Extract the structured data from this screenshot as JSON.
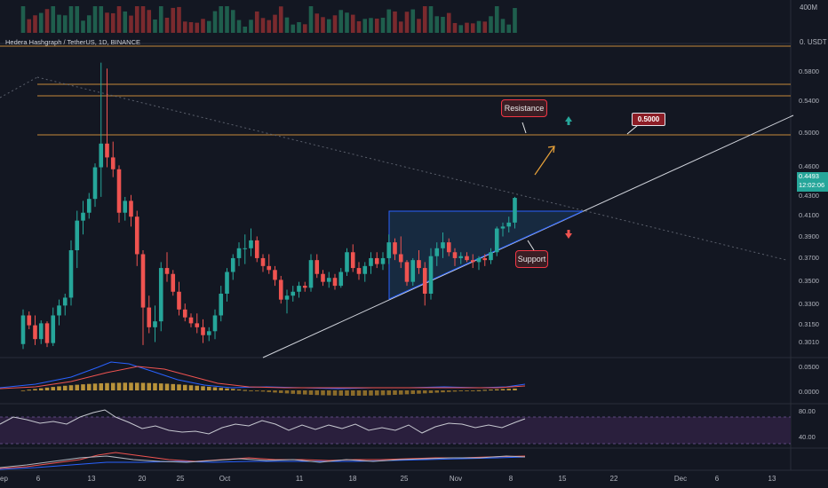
{
  "header": {
    "symbol_line": "Hedera Hashgraph / TetherUS, 1D, BINANCE"
  },
  "volume_axis_label": "400M",
  "top_axis_label": "0. USDT",
  "price_axis": [
    "0.5800",
    "0.5400",
    "0.5000",
    "0.4600",
    "0.4300",
    "0.4100",
    "0.3900",
    "0.3700",
    "0.3500",
    "0.3300",
    "0.3150",
    "0.3010"
  ],
  "current_price": {
    "price": "0.4493",
    "countdown": "12:02:06"
  },
  "macd_axis": [
    "0.0500",
    "0.0000"
  ],
  "rsi_axis": [
    "80.00",
    "40.00"
  ],
  "annotations": {
    "resistance": "Resistance",
    "support": "Support",
    "target": "0.5000"
  },
  "x_axis": [
    "ep",
    "6",
    "13",
    "20",
    "25",
    "Oct",
    "11",
    "18",
    "25",
    "Nov",
    "8",
    "15",
    "22",
    "Dec",
    "6",
    "13"
  ],
  "colors": {
    "up": "#26a69a",
    "down": "#ef5350",
    "background": "#131722",
    "accent": "#f7a600"
  },
  "chart_data": {
    "type": "candlestick",
    "candles": [
      [
        0.301,
        0.336,
        0.296,
        0.33
      ],
      [
        0.33,
        0.334,
        0.316,
        0.32
      ],
      [
        0.32,
        0.33,
        0.3,
        0.306
      ],
      [
        0.306,
        0.325,
        0.301,
        0.322
      ],
      [
        0.322,
        0.324,
        0.298,
        0.302
      ],
      [
        0.302,
        0.338,
        0.299,
        0.33
      ],
      [
        0.33,
        0.346,
        0.32,
        0.34
      ],
      [
        0.34,
        0.352,
        0.33,
        0.348
      ],
      [
        0.348,
        0.406,
        0.34,
        0.396
      ],
      [
        0.396,
        0.436,
        0.378,
        0.426
      ],
      [
        0.426,
        0.446,
        0.412,
        0.434
      ],
      [
        0.434,
        0.454,
        0.428,
        0.448
      ],
      [
        0.448,
        0.484,
        0.44,
        0.48
      ],
      [
        0.48,
        0.586,
        0.45,
        0.504
      ],
      [
        0.504,
        0.58,
        0.48,
        0.49
      ],
      [
        0.49,
        0.506,
        0.47,
        0.478
      ],
      [
        0.478,
        0.482,
        0.424,
        0.434
      ],
      [
        0.434,
        0.45,
        0.426,
        0.446
      ],
      [
        0.446,
        0.452,
        0.42,
        0.43
      ],
      [
        0.43,
        0.436,
        0.38,
        0.392
      ],
      [
        0.392,
        0.396,
        0.3,
        0.338
      ],
      [
        0.338,
        0.35,
        0.312,
        0.318
      ],
      [
        0.318,
        0.34,
        0.303,
        0.324
      ],
      [
        0.324,
        0.384,
        0.314,
        0.378
      ],
      [
        0.378,
        0.394,
        0.364,
        0.372
      ],
      [
        0.372,
        0.376,
        0.35,
        0.354
      ],
      [
        0.354,
        0.364,
        0.33,
        0.336
      ],
      [
        0.336,
        0.342,
        0.324,
        0.328
      ],
      [
        0.328,
        0.332,
        0.318,
        0.322
      ],
      [
        0.322,
        0.332,
        0.312,
        0.318
      ],
      [
        0.318,
        0.326,
        0.302,
        0.31
      ],
      [
        0.31,
        0.318,
        0.304,
        0.314
      ],
      [
        0.314,
        0.336,
        0.306,
        0.33
      ],
      [
        0.33,
        0.36,
        0.324,
        0.352
      ],
      [
        0.352,
        0.378,
        0.344,
        0.374
      ],
      [
        0.374,
        0.392,
        0.366,
        0.388
      ],
      [
        0.388,
        0.404,
        0.38,
        0.398
      ],
      [
        0.398,
        0.412,
        0.382,
        0.398
      ],
      [
        0.398,
        0.418,
        0.39,
        0.406
      ],
      [
        0.406,
        0.41,
        0.384,
        0.388
      ],
      [
        0.388,
        0.392,
        0.374,
        0.38
      ],
      [
        0.38,
        0.392,
        0.372,
        0.376
      ],
      [
        0.376,
        0.38,
        0.36,
        0.366
      ],
      [
        0.366,
        0.37,
        0.342,
        0.346
      ],
      [
        0.346,
        0.356,
        0.332,
        0.35
      ],
      [
        0.35,
        0.36,
        0.344,
        0.354
      ],
      [
        0.354,
        0.364,
        0.348,
        0.36
      ],
      [
        0.36,
        0.364,
        0.354,
        0.358
      ],
      [
        0.358,
        0.392,
        0.354,
        0.386
      ],
      [
        0.386,
        0.392,
        0.368,
        0.372
      ],
      [
        0.372,
        0.376,
        0.36,
        0.364
      ],
      [
        0.364,
        0.374,
        0.358,
        0.368
      ],
      [
        0.368,
        0.372,
        0.356,
        0.36
      ],
      [
        0.36,
        0.378,
        0.358,
        0.374
      ],
      [
        0.374,
        0.398,
        0.37,
        0.394
      ],
      [
        0.394,
        0.402,
        0.374,
        0.378
      ],
      [
        0.378,
        0.384,
        0.366,
        0.372
      ],
      [
        0.372,
        0.384,
        0.364,
        0.38
      ],
      [
        0.38,
        0.394,
        0.372,
        0.388
      ],
      [
        0.388,
        0.394,
        0.378,
        0.382
      ],
      [
        0.382,
        0.394,
        0.376,
        0.388
      ],
      [
        0.388,
        0.412,
        0.382,
        0.404
      ],
      [
        0.404,
        0.408,
        0.386,
        0.392
      ],
      [
        0.392,
        0.41,
        0.378,
        0.384
      ],
      [
        0.384,
        0.386,
        0.36,
        0.364
      ],
      [
        0.364,
        0.388,
        0.36,
        0.386
      ],
      [
        0.386,
        0.396,
        0.372,
        0.378
      ],
      [
        0.378,
        0.384,
        0.34,
        0.352
      ],
      [
        0.352,
        0.398,
        0.346,
        0.39
      ],
      [
        0.39,
        0.404,
        0.38,
        0.398
      ],
      [
        0.398,
        0.414,
        0.388,
        0.404
      ],
      [
        0.404,
        0.408,
        0.39,
        0.394
      ],
      [
        0.394,
        0.398,
        0.38,
        0.388
      ],
      [
        0.388,
        0.394,
        0.382,
        0.39
      ],
      [
        0.39,
        0.394,
        0.384,
        0.386
      ],
      [
        0.386,
        0.392,
        0.378,
        0.384
      ],
      [
        0.384,
        0.39,
        0.376,
        0.388
      ],
      [
        0.388,
        0.392,
        0.38,
        0.386
      ],
      [
        0.386,
        0.398,
        0.382,
        0.394
      ],
      [
        0.394,
        0.42,
        0.39,
        0.418
      ],
      [
        0.418,
        0.424,
        0.41,
        0.42
      ],
      [
        0.42,
        0.43,
        0.414,
        0.424
      ],
      [
        0.424,
        0.45,
        0.418,
        0.449
      ]
    ],
    "ylim": [
      0.29,
      0.6
    ],
    "levels": [
      0.56,
      0.55,
      0.5
    ],
    "macd": {
      "ylim": [
        -0.02,
        0.06
      ]
    },
    "rsi": {
      "ylim": [
        30,
        90
      ],
      "band": [
        40,
        80
      ]
    }
  }
}
